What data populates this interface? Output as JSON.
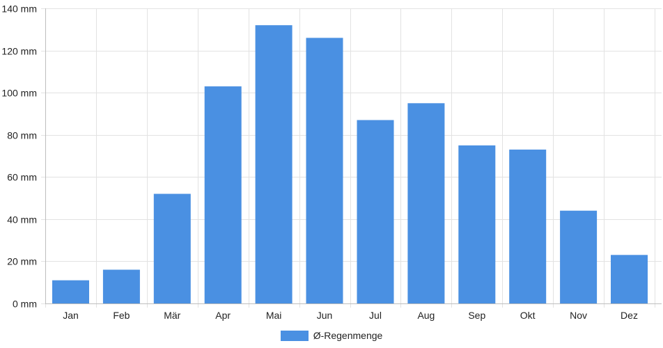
{
  "chart_data": {
    "type": "bar",
    "title": "",
    "xlabel": "",
    "ylabel": "",
    "categories": [
      "Jan",
      "Feb",
      "Mär",
      "Apr",
      "Mai",
      "Jun",
      "Jul",
      "Aug",
      "Sep",
      "Okt",
      "Nov",
      "Dez"
    ],
    "series": [
      {
        "name": "Ø-Regenmenge",
        "values": [
          11,
          16,
          52,
          103,
          132,
          126,
          87,
          95,
          75,
          73,
          44,
          23
        ]
      }
    ],
    "ylim": [
      0,
      140
    ],
    "y_ticks": [
      "0 mm",
      "20 mm",
      "40 mm",
      "60 mm",
      "80 mm",
      "100 mm",
      "120 mm",
      "140 mm"
    ],
    "y_tick_values": [
      0,
      20,
      40,
      60,
      80,
      100,
      120,
      140
    ],
    "unit": "mm",
    "grid": true,
    "legend_position": "bottom",
    "colors": {
      "bar": "#4a90e2",
      "grid": "#e2e2e2",
      "axis": "#bdbdbd",
      "text": "#222222"
    }
  }
}
